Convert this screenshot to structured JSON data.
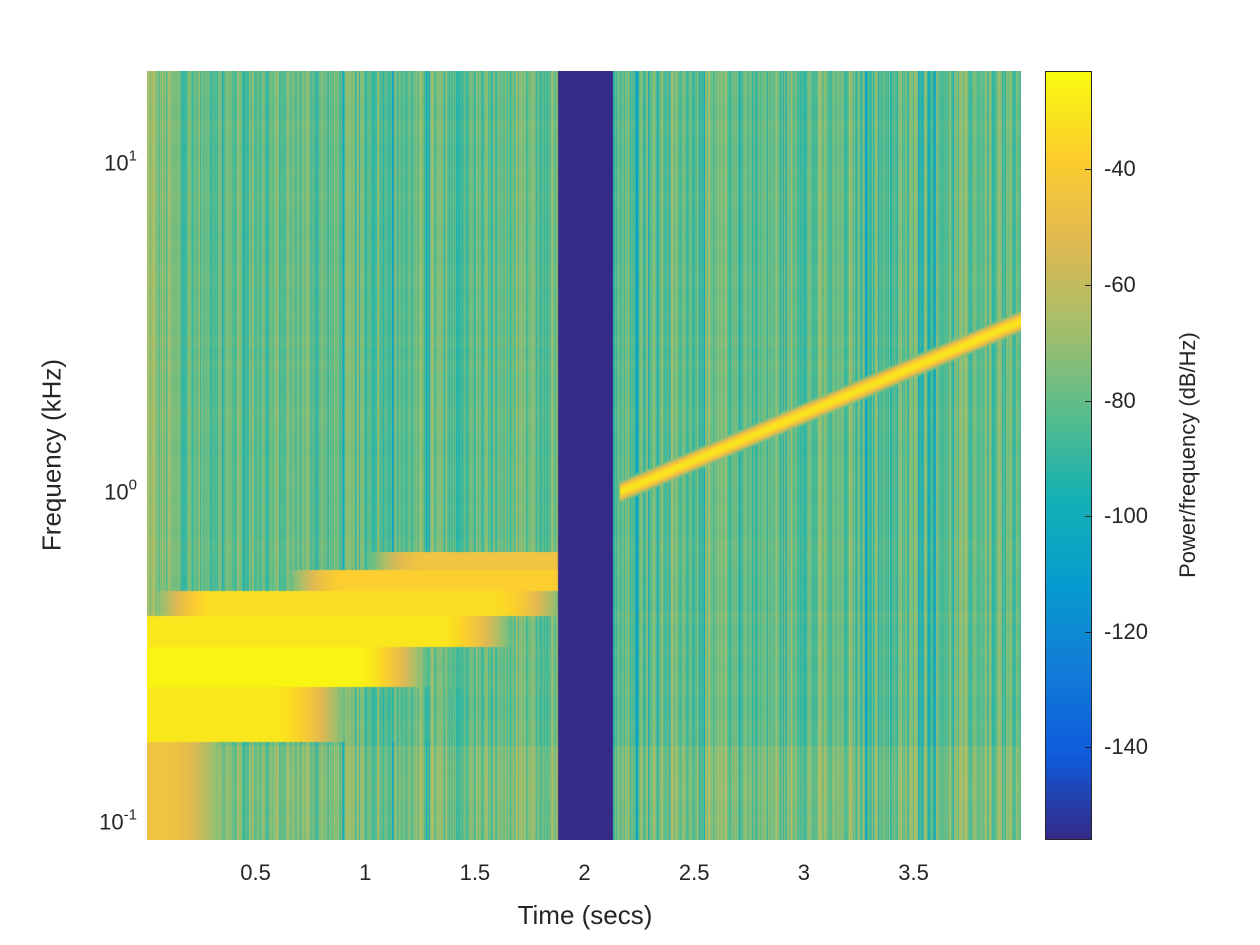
{
  "chart_data": {
    "type": "heatmap",
    "subtype": "spectrogram",
    "xlabel": "Time (secs)",
    "ylabel": "Frequency (kHz)",
    "colorbar_label": "Power/frequency (dB/Hz)",
    "colormap": "parula",
    "yscale": "log",
    "xlim": [
      0.005,
      3.99
    ],
    "ylim": [
      0.088,
      19
    ],
    "clim": [
      -156,
      -23
    ],
    "x_ticks": [
      {
        "value": 0.5,
        "label": "0.5"
      },
      {
        "value": 1,
        "label": "1"
      },
      {
        "value": 1.5,
        "label": "1.5"
      },
      {
        "value": 2,
        "label": "2"
      },
      {
        "value": 2.5,
        "label": "2.5"
      },
      {
        "value": 3,
        "label": "3"
      },
      {
        "value": 3.5,
        "label": "3.5"
      }
    ],
    "y_ticks": [
      {
        "value": 10,
        "base": "10",
        "exp": "1"
      },
      {
        "value": 1,
        "base": "10",
        "exp": "0"
      },
      {
        "value": 0.1,
        "base": "10",
        "exp": "-1"
      }
    ],
    "colorbar_ticks": [
      {
        "value": -40,
        "label": "-40"
      },
      {
        "value": -60,
        "label": "-60"
      },
      {
        "value": -80,
        "label": "-80"
      },
      {
        "value": -100,
        "label": "-100"
      },
      {
        "value": -120,
        "label": "-120"
      },
      {
        "value": -140,
        "label": "-140"
      }
    ],
    "noise_floor_db": [
      -100,
      -65
    ],
    "silence": {
      "t_start": 1.88,
      "t_end": 2.13,
      "db": -156
    },
    "tone_bands": [
      {
        "f_khz": [
          0.58,
          0.66
        ],
        "t_on": 1.25,
        "t_off": 1.85,
        "peak_db": -45
      },
      {
        "f_khz": [
          0.5,
          0.58
        ],
        "t_on": 0.9,
        "t_off": 1.85,
        "peak_db": -38
      },
      {
        "f_khz": [
          0.42,
          0.5
        ],
        "t_on": 0.3,
        "t_off": 1.6,
        "peak_db": -33
      },
      {
        "f_khz": [
          0.34,
          0.42
        ],
        "t_on": 0.0,
        "t_off": 1.35,
        "peak_db": -30
      },
      {
        "f_khz": [
          0.256,
          0.34
        ],
        "t_on": 0.0,
        "t_off": 0.95,
        "peak_db": -25
      },
      {
        "f_khz": [
          0.174,
          0.256
        ],
        "t_on": 0.0,
        "t_off": 0.6,
        "peak_db": -30
      },
      {
        "f_khz": [
          0.088,
          0.174
        ],
        "t_on": 0.0,
        "t_off": 0.1,
        "peak_db": -45
      }
    ],
    "chirp": {
      "t_start": 2.16,
      "t_end": 3.99,
      "f_start_khz": 1.0,
      "f_end_khz": 3.3,
      "peak_db": -30
    }
  }
}
